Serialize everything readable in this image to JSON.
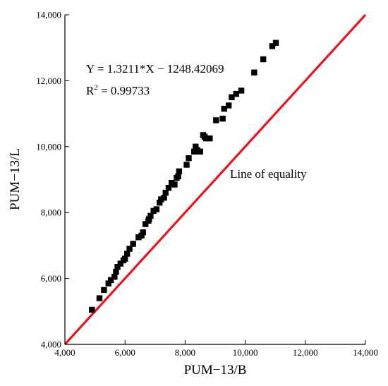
{
  "chart_data": {
    "type": "scatter",
    "xlabel": "PUM−13/B",
    "ylabel": "PUM−13/L",
    "xlim": [
      4000,
      14000
    ],
    "ylim": [
      4000,
      14000
    ],
    "xticks": [
      4000,
      6000,
      8000,
      10000,
      12000,
      14000
    ],
    "yticks": [
      4000,
      6000,
      8000,
      10000,
      12000,
      14000
    ],
    "xtick_labels": [
      "4,000",
      "6,000",
      "8,000",
      "10,000",
      "12,000",
      "14,000"
    ],
    "ytick_labels": [
      "4,000",
      "6,000",
      "8,000",
      "10,000",
      "12,000",
      "14,000"
    ],
    "grid": false,
    "marker_color": "#000000",
    "reference_line": {
      "label": "Line of equality",
      "color": "#e8141b",
      "x": [
        4000,
        14000
      ],
      "y": [
        4000,
        14000
      ]
    },
    "equation_text": "Y = 1.3211*X − 1248.42069",
    "r2_prefix": "R",
    "r2_sup": "2",
    "r2_value": " = 0.99733",
    "series": [
      {
        "marker": "square",
        "x": [
          4900,
          5150,
          5300,
          5450,
          5530,
          5650,
          5700,
          5750,
          5850,
          5950,
          6000,
          6070,
          6150,
          6270,
          6450,
          6550,
          6600,
          6680,
          6780,
          6800,
          6850,
          6950,
          7050,
          7150,
          7200,
          7300,
          7350,
          7450,
          7550,
          7650,
          7720,
          7770,
          7800,
          8050,
          8120,
          8300,
          8350,
          8400,
          8500,
          8600,
          8650,
          8700,
          8820,
          9030,
          9250,
          9300,
          9450,
          9550,
          9700,
          9870,
          10300,
          10600,
          10900,
          11020
        ],
        "y": [
          5050,
          5400,
          5650,
          5850,
          5950,
          6050,
          6200,
          6350,
          6450,
          6550,
          6600,
          6750,
          6900,
          7050,
          7250,
          7300,
          7400,
          7650,
          7750,
          7800,
          7900,
          8050,
          8100,
          8300,
          8400,
          8450,
          8600,
          8750,
          8900,
          8850,
          9050,
          9100,
          9250,
          9450,
          9650,
          9850,
          10000,
          9900,
          9850,
          10350,
          10300,
          10250,
          10250,
          10800,
          10850,
          11150,
          11250,
          11500,
          11600,
          11700,
          12250,
          12650,
          13050,
          13150
        ]
      }
    ]
  }
}
